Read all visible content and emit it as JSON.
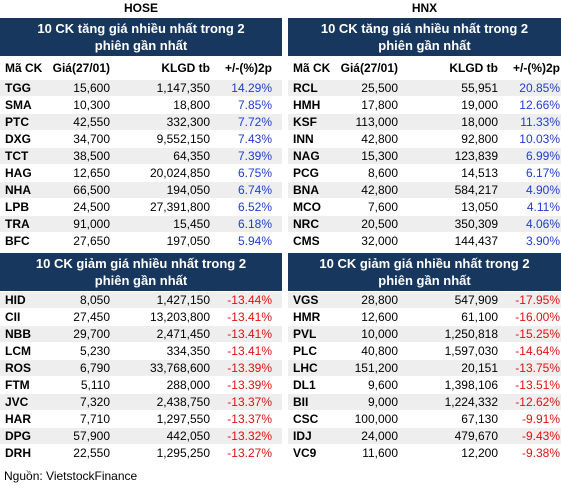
{
  "panels": [
    {
      "exchange": "HOSE",
      "gainers": {
        "title": "10 CK tăng giá nhiều nhất trong 2 phiên gần nhất",
        "columns": [
          "Mã CK",
          "Giá(27/01)",
          "KLGD tb",
          "+/-(%)2p"
        ],
        "rows": [
          [
            "TGG",
            "15,600",
            "1,147,350",
            "14.29%"
          ],
          [
            "SMA",
            "10,300",
            "18,800",
            "7.85%"
          ],
          [
            "PTC",
            "42,550",
            "332,300",
            "7.72%"
          ],
          [
            "DXG",
            "34,700",
            "9,552,150",
            "7.43%"
          ],
          [
            "TCT",
            "38,500",
            "64,350",
            "7.39%"
          ],
          [
            "HAG",
            "12,650",
            "20,024,850",
            "6.75%"
          ],
          [
            "NHA",
            "66,500",
            "194,050",
            "6.74%"
          ],
          [
            "LPB",
            "24,500",
            "27,391,800",
            "6.52%"
          ],
          [
            "TRA",
            "91,000",
            "15,450",
            "6.18%"
          ],
          [
            "BFC",
            "27,650",
            "197,050",
            "5.94%"
          ]
        ]
      },
      "losers": {
        "title": "10 CK giảm giá nhiều nhất trong 2 phiên gần nhất",
        "rows": [
          [
            "HID",
            "8,050",
            "1,427,150",
            "-13.44%"
          ],
          [
            "CII",
            "27,450",
            "13,203,800",
            "-13.41%"
          ],
          [
            "NBB",
            "29,700",
            "2,471,450",
            "-13.41%"
          ],
          [
            "LCM",
            "5,230",
            "334,350",
            "-13.41%"
          ],
          [
            "ROS",
            "6,790",
            "33,768,600",
            "-13.39%"
          ],
          [
            "FTM",
            "5,110",
            "288,000",
            "-13.39%"
          ],
          [
            "JVC",
            "7,320",
            "2,438,750",
            "-13.37%"
          ],
          [
            "HAR",
            "7,710",
            "1,297,550",
            "-13.37%"
          ],
          [
            "DPG",
            "57,900",
            "442,050",
            "-13.32%"
          ],
          [
            "DRH",
            "22,550",
            "1,295,250",
            "-13.27%"
          ]
        ]
      }
    },
    {
      "exchange": "HNX",
      "gainers": {
        "title": "10 CK tăng giá nhiều nhất trong 2 phiên gần nhất",
        "columns": [
          "Mã CK",
          "Giá(27/01)",
          "KLGD tb",
          "+/-(%)2p"
        ],
        "rows": [
          [
            "RCL",
            "25,500",
            "55,951",
            "20.85%"
          ],
          [
            "HMH",
            "17,800",
            "19,000",
            "12.66%"
          ],
          [
            "KSF",
            "113,000",
            "18,000",
            "11.33%"
          ],
          [
            "INN",
            "42,800",
            "92,800",
            "10.03%"
          ],
          [
            "NAG",
            "15,300",
            "123,839",
            "6.99%"
          ],
          [
            "PCG",
            "8,600",
            "14,513",
            "6.17%"
          ],
          [
            "BNA",
            "42,800",
            "584,217",
            "4.90%"
          ],
          [
            "MCO",
            "7,600",
            "13,050",
            "4.11%"
          ],
          [
            "NRC",
            "20,500",
            "350,309",
            "4.06%"
          ],
          [
            "CMS",
            "32,000",
            "144,437",
            "3.90%"
          ]
        ]
      },
      "losers": {
        "title": "10 CK giảm giá nhiều nhất trong 2 phiên gần nhất",
        "rows": [
          [
            "VGS",
            "28,800",
            "547,909",
            "-17.95%"
          ],
          [
            "HMR",
            "12,600",
            "61,100",
            "-16.00%"
          ],
          [
            "PVL",
            "10,000",
            "1,250,818",
            "-15.25%"
          ],
          [
            "PLC",
            "40,800",
            "1,597,030",
            "-14.64%"
          ],
          [
            "LHC",
            "151,200",
            "20,151",
            "-13.75%"
          ],
          [
            "DL1",
            "9,600",
            "1,398,106",
            "-13.51%"
          ],
          [
            "BII",
            "9,000",
            "1,224,332",
            "-12.62%"
          ],
          [
            "CSC",
            "100,000",
            "67,130",
            "-9.91%"
          ],
          [
            "IDJ",
            "24,000",
            "479,670",
            "-9.43%"
          ],
          [
            "VC9",
            "11,600",
            "12,200",
            "-9.38%"
          ]
        ]
      }
    }
  ],
  "source": "Nguồn: VietstockFinance"
}
